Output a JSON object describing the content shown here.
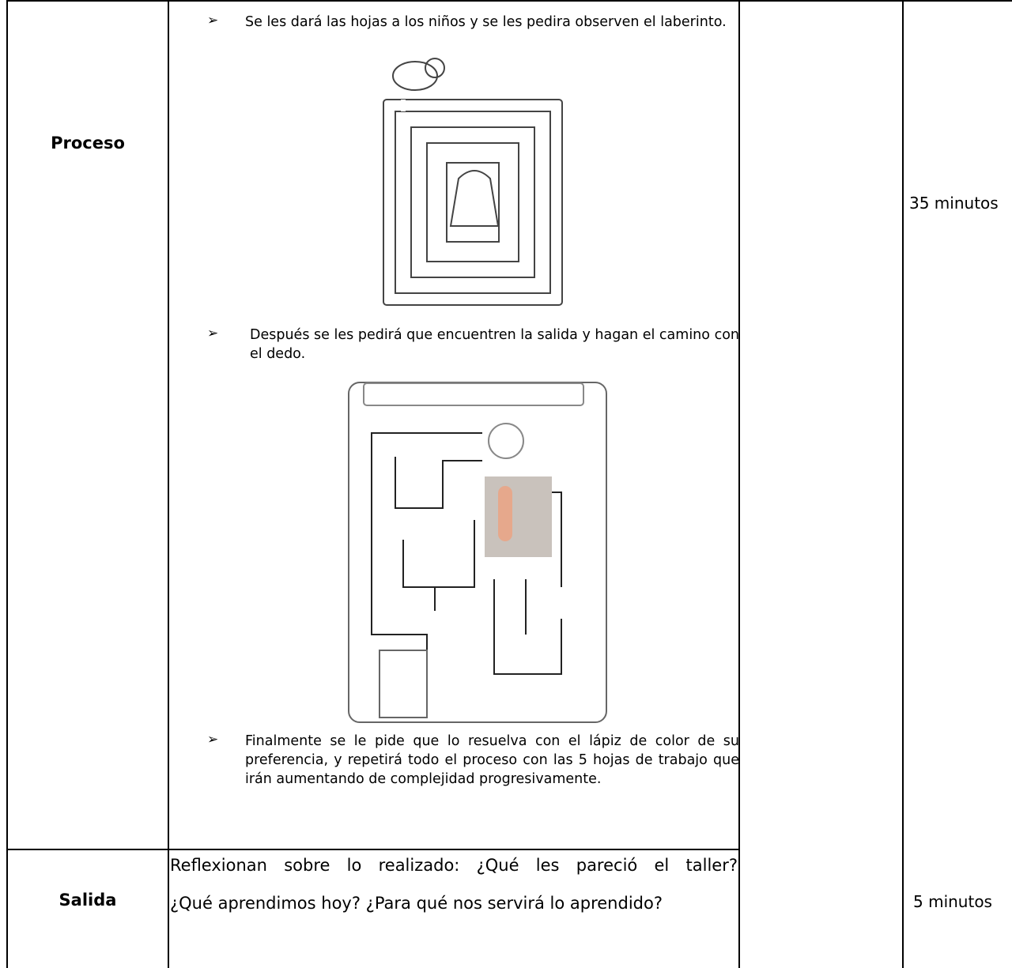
{
  "table": {
    "rows": [
      {
        "stage": "Proceso",
        "steps": [
          "Se les dará las hojas a los niños y se les pedira observen el laberinto.",
          "Después se les pedirá que encuentren la salida y hagan el camino con el dedo.",
          "Finalmente se le pide que lo resuelva con el lápiz de color de su preferencia, y repetirá todo el proceso con las 5 hojas de trabajo que irán aumentando de complejidad progresivamente."
        ],
        "time": "35 minutos"
      },
      {
        "stage": "Salida",
        "lines": [
          "Reflexionan sobre lo realizado: ¿Qué les pareció el taller?",
          "¿Qué aprendimos hoy? ¿Para qué nos servirá lo aprendido?"
        ],
        "time": "5 minutos"
      }
    ]
  }
}
